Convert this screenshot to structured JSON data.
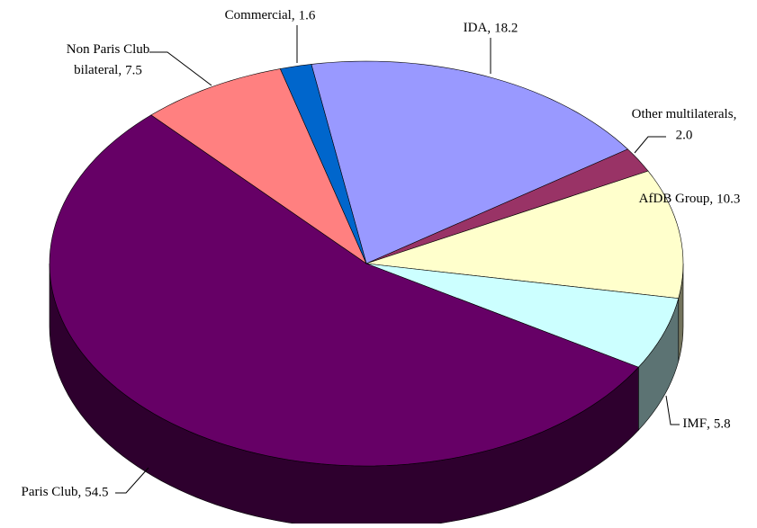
{
  "chart_data": {
    "type": "pie3d",
    "categories": [
      "IDA",
      "Other multilaterals",
      "AfDB Group",
      "IMF",
      "Paris Club",
      "Non Paris Club bilateral",
      "Commercial"
    ],
    "values": [
      18.2,
      2.0,
      10.3,
      5.8,
      54.5,
      7.5,
      1.6
    ],
    "value_labels": [
      "18.2",
      "2.0",
      "10.3",
      "5.8",
      "54.5",
      "7.5",
      "1.6"
    ],
    "colors": [
      "#9999ff",
      "#993366",
      "#ffffcc",
      "#ccffff",
      "#660066",
      "#ff8080",
      "#0066cc"
    ]
  }
}
